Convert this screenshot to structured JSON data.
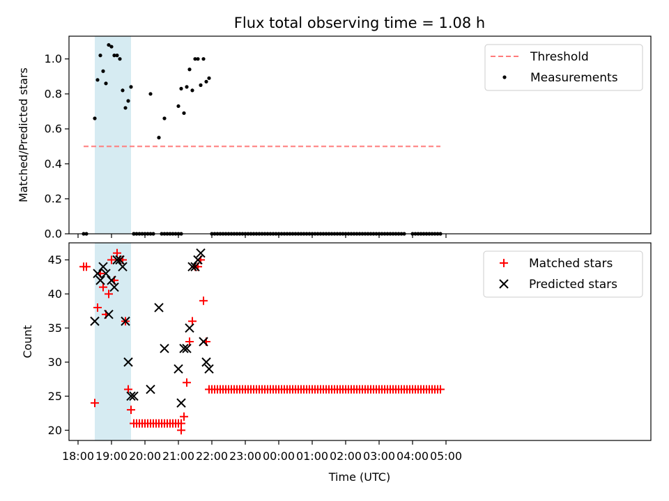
{
  "chart_data": [
    {
      "type": "scatter",
      "title": "Flux total observing time = 1.08 h",
      "xlabel": "",
      "ylabel": "Matched/Predicted stars",
      "ylim": [
        0,
        1.13
      ],
      "yticks": [
        "0.0",
        "0.2",
        "0.4",
        "0.6",
        "0.8",
        "1.0"
      ],
      "threshold": {
        "name": "Threshold",
        "value": 0.5,
        "x_range": [
          "18:10",
          "04:50"
        ],
        "color": "#ff7b7b"
      },
      "shaded_interval": [
        "18:30",
        "19:35"
      ],
      "legend_position": "upper right",
      "series": [
        {
          "name": "Measurements",
          "color": "#000000",
          "x": [
            "18:30",
            "18:35",
            "18:40",
            "18:45",
            "18:50",
            "18:55",
            "19:00",
            "19:05",
            "19:10",
            "19:15",
            "19:20",
            "19:25",
            "19:30",
            "19:35",
            "19:40",
            "20:10",
            "20:25",
            "20:35",
            "21:00",
            "21:05",
            "21:10",
            "21:15",
            "21:20",
            "21:25",
            "21:30",
            "21:35",
            "21:40",
            "21:45",
            "21:50",
            "21:55"
          ],
          "y": [
            0.66,
            0.88,
            1.02,
            0.93,
            0.86,
            1.08,
            1.07,
            1.02,
            1.02,
            1.0,
            0.82,
            0.72,
            0.76,
            0.84,
            0.0,
            0.8,
            0.55,
            0.66,
            0.73,
            0.83,
            0.69,
            0.84,
            0.94,
            0.82,
            1.0,
            1.0,
            0.85,
            1.0,
            0.87,
            0.89
          ]
        },
        {
          "name": "",
          "color": "#000000",
          "x_zero_ranges": [
            [
              "18:10",
              "18:15"
            ],
            [
              "19:40",
              "20:15"
            ],
            [
              "20:30",
              "20:40"
            ],
            [
              "20:45",
              "21:05"
            ],
            [
              "22:00",
              "03:05"
            ],
            [
              "03:10",
              "03:15"
            ],
            [
              "03:20",
              "03:25"
            ],
            [
              "03:30",
              "03:45"
            ],
            [
              "04:00",
              "04:05"
            ],
            [
              "04:10",
              "04:50"
            ]
          ],
          "y": 0
        }
      ]
    },
    {
      "type": "scatter",
      "title": "",
      "xlabel": "Time (UTC)",
      "ylabel": "Count",
      "ylim": [
        18.5,
        47.5
      ],
      "yticks": [
        "20",
        "25",
        "30",
        "35",
        "40",
        "45"
      ],
      "xticks": [
        "18:00",
        "19:00",
        "20:00",
        "21:00",
        "22:00",
        "23:00",
        "00:00",
        "01:00",
        "02:00",
        "03:00",
        "04:00",
        "05:00"
      ],
      "shaded_interval": [
        "18:30",
        "19:35"
      ],
      "legend_position": "upper right",
      "series": [
        {
          "name": "Matched stars",
          "marker": "+",
          "color": "#ff0000",
          "x": [
            "18:10",
            "18:15",
            "18:30",
            "18:35",
            "18:40",
            "18:45",
            "18:50",
            "18:55",
            "19:00",
            "19:05",
            "19:10",
            "19:15",
            "19:20",
            "19:25",
            "19:30",
            "19:35",
            "19:40",
            "21:05",
            "21:10",
            "21:15",
            "21:20",
            "21:25",
            "21:30",
            "21:35",
            "21:40",
            "21:45",
            "21:50"
          ],
          "y": [
            44,
            44,
            24,
            38,
            43,
            41,
            37,
            40,
            45,
            42,
            46,
            45,
            45,
            36,
            26,
            23,
            21,
            20,
            22,
            27,
            33,
            36,
            44,
            44,
            45,
            39,
            33
          ],
          "flat_ranges": [
            {
              "from": "19:40",
              "to": "21:05",
              "y": 21
            },
            {
              "from": "21:55",
              "to": "04:50",
              "y": 26
            }
          ]
        },
        {
          "name": "Predicted stars",
          "marker": "x",
          "color": "#000000",
          "x": [
            "18:30",
            "18:35",
            "18:40",
            "18:45",
            "18:50",
            "18:55",
            "19:00",
            "19:05",
            "19:10",
            "19:15",
            "19:20",
            "19:25",
            "19:30",
            "19:35",
            "19:40",
            "20:10",
            "20:25",
            "20:35",
            "21:00",
            "21:05",
            "21:10",
            "21:15",
            "21:20",
            "21:25",
            "21:30",
            "21:35",
            "21:40",
            "21:45",
            "21:50",
            "21:55"
          ],
          "y": [
            36,
            43,
            42,
            44,
            43,
            37,
            42,
            41,
            45,
            45,
            44,
            36,
            30,
            25,
            25,
            26,
            38,
            32,
            29,
            24,
            32,
            32,
            35,
            44,
            44,
            45,
            46,
            33,
            30,
            29
          ]
        }
      ]
    }
  ]
}
